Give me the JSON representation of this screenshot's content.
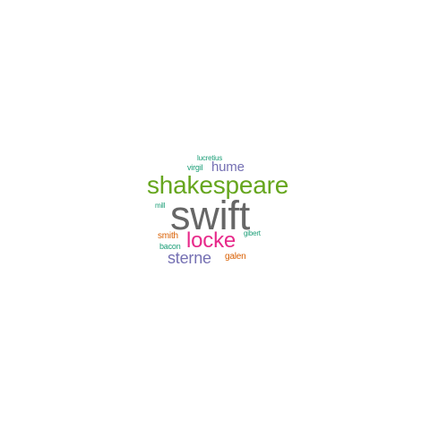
{
  "wordcloud": {
    "words": {
      "lucretius": {
        "text": "lucretius",
        "color": "#1b9e77"
      },
      "virgil": {
        "text": "virgil",
        "color": "#1b9e77"
      },
      "hume": {
        "text": "hume",
        "color": "#7570b3"
      },
      "shakespeare": {
        "text": "shakespeare",
        "color": "#66a61e"
      },
      "mill": {
        "text": "mill",
        "color": "#1b9e77"
      },
      "swift": {
        "text": "swift",
        "color": "#666666"
      },
      "locke": {
        "text": "locke",
        "color": "#e7298a"
      },
      "gibert": {
        "text": "gibert",
        "color": "#1b9e77"
      },
      "smith": {
        "text": "smith",
        "color": "#d95f02"
      },
      "bacon": {
        "text": "bacon",
        "color": "#1b9e77"
      },
      "sterne": {
        "text": "sterne",
        "color": "#7570b3"
      },
      "galen": {
        "text": "galen",
        "color": "#d95f02"
      }
    }
  }
}
